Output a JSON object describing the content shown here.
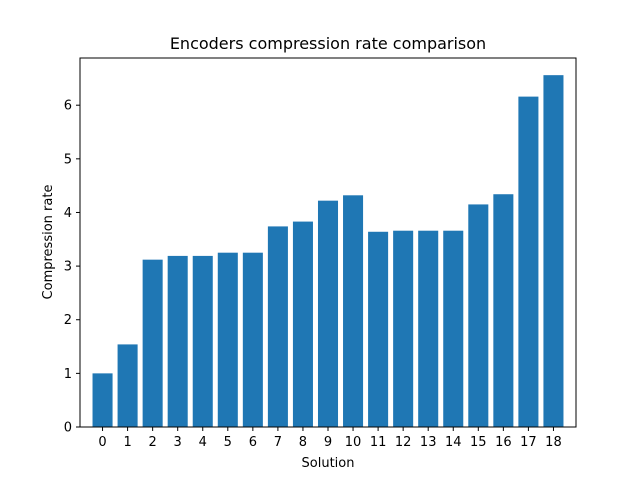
{
  "chart_data": {
    "type": "bar",
    "title": "Encoders compression rate comparison",
    "xlabel": "Solution",
    "ylabel": "Compression rate",
    "categories": [
      "0",
      "1",
      "2",
      "3",
      "4",
      "5",
      "6",
      "7",
      "8",
      "9",
      "10",
      "11",
      "12",
      "13",
      "14",
      "15",
      "16",
      "17",
      "18"
    ],
    "values": [
      1.0,
      1.54,
      3.12,
      3.19,
      3.19,
      3.25,
      3.25,
      3.74,
      3.83,
      4.22,
      4.32,
      3.64,
      3.66,
      3.66,
      3.66,
      4.15,
      4.34,
      6.16,
      6.56
    ],
    "ylim": [
      0,
      6.88
    ],
    "yticks": [
      0,
      1,
      2,
      3,
      4,
      5,
      6
    ],
    "bar_color": "#1f77b4",
    "grid": false
  }
}
